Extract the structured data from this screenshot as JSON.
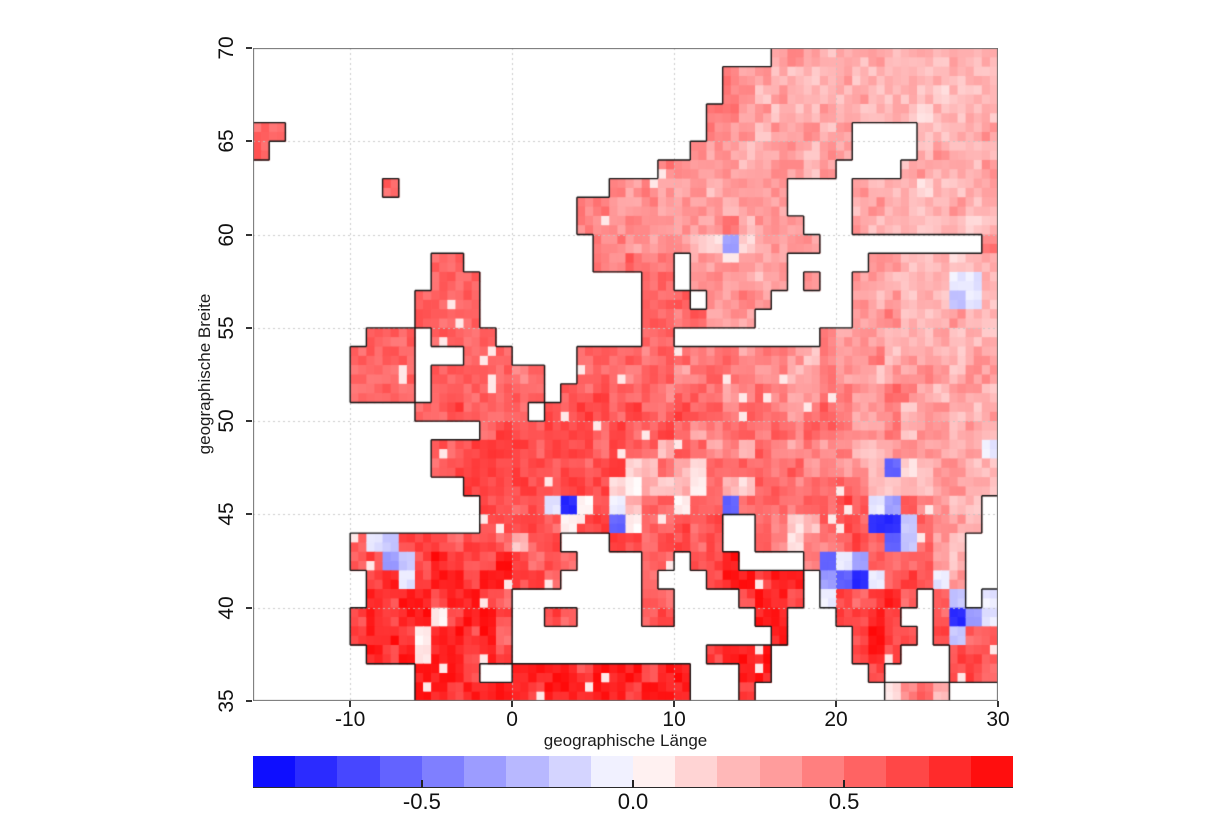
{
  "chart_data": {
    "type": "heatmap",
    "title": "",
    "xlabel": "geographische Länge",
    "ylabel": "geographische Breite",
    "xlim": [
      -16,
      30
    ],
    "ylim": [
      35,
      70
    ],
    "x_ticks": [
      -10,
      0,
      10,
      20,
      30
    ],
    "x_tick_labels": [
      "-10",
      "0",
      "10",
      "20",
      "30"
    ],
    "y_ticks": [
      35,
      40,
      45,
      50,
      55,
      60,
      65,
      70
    ],
    "y_tick_labels": [
      "35",
      "40",
      "45",
      "50",
      "55",
      "60",
      "65",
      "70"
    ],
    "grid_on": true,
    "legend_position": "bottom",
    "grid": {
      "lon_start": -16,
      "lon_step": 1,
      "lat_start": 70,
      "lat_step": -1,
      "cols": 46,
      "rows": 35
    },
    "value_buckets": {
      "1": -0.75,
      "2": -0.55,
      "3": -0.35,
      "4": -0.2,
      "5": -0.08,
      "6": 0.05,
      "7": 0.15,
      "8": 0.25,
      "9": 0.35,
      "a": 0.45,
      "b": 0.55,
      "c": 0.65,
      "d": 0.8
    },
    "rows": [
      "................................9a988898888988",
      ".............................a9988889888888888",
      ".............................a9898888988887888",
      "............................aa9988898888878888",
      "bb..........................a99899989....88889",
      "b..........................a998999899....89888",
      ".........................a9999899989....898889",
      "........b.............a9a99989999....988878889",
      "....................aa99a99998999....898888988",
      "....................aa9a99999a8999...988888878",
      ".....................aa999987379999..........a",
      "...........bb........aabaa.99a999.....99888788",
      "...........bbb..........bb.9a9989.9..998888558",
      "..........bbbb..........bbb.99a9.....989888458",
      "..........bbbb..........bbab999......99a888988",
      ".......bbb.bbbb.........bb.........a9998889888",
      "......bbbb...bbb....bbbbabbaab9aa98a99a8998899",
      "......bbbb.bbbbbab..bbbabb9abaa9a89a99899a9899",
      "......bbbb.bbbbbbb.bbcbbbabba9aba99aa99ba98998",
      "..........bbcbbbb.cbccbcbbcbbabba9aba99a899889",
      "..............bccbcccbcbbcb9abbababba99a899898",
      "...........cbccccbcccbcbb8bb9a8ba9a9a889a99895",
      "...........bccccccbcbcc78b87babbab9a9982789988",
      ".............cccccbccc768786b87bbabbba87889988",
      "..............ccbc516c58bb6bb2bbbabbcb53ba988.",
      "..............ccccb6cc26bbcbc..ba78bcb114ba98.",
      "......b54cccbccb8bc...ccbccbc..ba7aabcb24b98..",
      "......bc34cdcccdcbcb....bb.ccd....a253bbbb98..",
      ".......cd5cddcddccb.....b...cddcdd.3215bcb59..",
      ".......dcddcddcb........bb....cddc.5cbcdb.b4.5",
      "......cdcdd6cddc..cb....bc.....dd...ccdc..b135",
      "......cddc6ddcdb................d....cdcc.c4bb",
      ".......dcd7ddcdc............cddd.....cdc...ccb",
      "..........dddc..ddddcdddcdd...dd......c....ccb",
      "..........ddcddddcdddddcddd...c........7ab8..."
    ],
    "colorbar": {
      "vmin": -0.9,
      "vmax": 0.9,
      "n_segments": 18,
      "ticks": [
        -0.5,
        0.0,
        0.5
      ],
      "tick_labels": [
        "-0.5",
        "0.0",
        "0.5"
      ],
      "color_negative_end": "#0e0eff",
      "color_center": "#ffffff",
      "color_positive_end": "#ff0e0e"
    },
    "style": {
      "coastline": "#161616",
      "grid_color": "#c4c4c4",
      "frame": "#6f6f6f",
      "background": "#ffffff"
    }
  }
}
